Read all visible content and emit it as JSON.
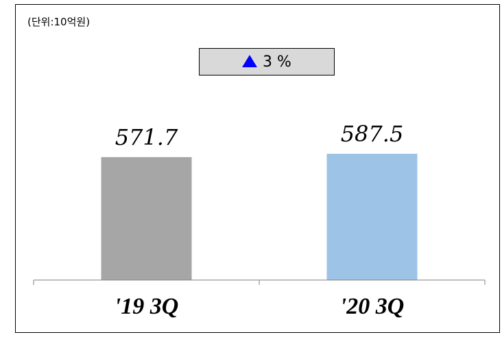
{
  "unit_label": "(단위:10억원)",
  "change_box": {
    "icon": "up-triangle-icon",
    "icon_color": "#0000ff",
    "text": "3 %",
    "background": "#d9d9d9"
  },
  "chart_data": {
    "type": "bar",
    "categories": [
      "'19 3Q",
      "'20 3Q"
    ],
    "values": [
      571.7,
      587.5
    ],
    "value_labels": [
      "571.7",
      "587.5"
    ],
    "bar_colors": [
      "#a6a6a6",
      "#9dc3e6"
    ],
    "title": "",
    "xlabel": "",
    "ylabel": "",
    "ylim": [
      0,
      640
    ],
    "grid": false,
    "legend": "none"
  }
}
